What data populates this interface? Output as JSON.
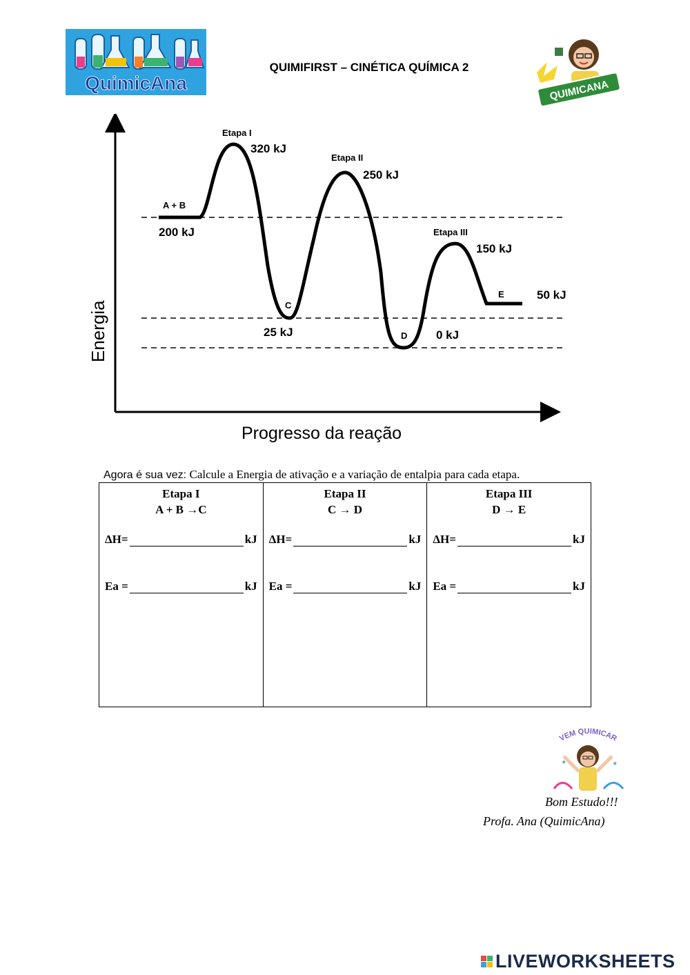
{
  "header": {
    "logo_left_text": "QuimicAna",
    "title": "QUIMIFIRST – CINÉTICA QUÍMICA 2",
    "logo_right_text": "QUIMICANA"
  },
  "diagram": {
    "y_axis_label": "Energia",
    "x_axis_label": "Progresso da reação",
    "points": {
      "ab": {
        "name": "A + B",
        "energy": "200 kJ"
      },
      "step1": {
        "name": "Etapa I",
        "energy": "320 kJ"
      },
      "c": {
        "name": "C",
        "energy": "25 kJ"
      },
      "step2": {
        "name": "Etapa II",
        "energy": "250 kJ"
      },
      "d": {
        "name": "D",
        "energy": "0 kJ"
      },
      "step3": {
        "name": "Etapa III",
        "energy": "150 kJ"
      },
      "e": {
        "name": "E",
        "energy": "50 kJ"
      }
    }
  },
  "instructions": {
    "lead": "Agora é sua vez: ",
    "text": "Calcule a Energia de ativação e a variação de entalpia para cada etapa."
  },
  "table": {
    "columns": [
      {
        "title": "Etapa I",
        "reaction": "A + B →C",
        "dh_label": "ΔH=",
        "ea_label": "Ea =",
        "unit": "kJ"
      },
      {
        "title": "Etapa II",
        "reaction": "C → D",
        "dh_label": "ΔH=",
        "ea_label": "Ea =",
        "unit": "kJ"
      },
      {
        "title": "Etapa III",
        "reaction": "D → E",
        "dh_label": "ΔH=",
        "ea_label": "Ea =",
        "unit": "kJ"
      }
    ]
  },
  "sticker_text": "VEM QUIMICAR",
  "signature": {
    "line1": "Bom Estudo!!!",
    "line2": "Profa. Ana (QuimicAna)"
  },
  "footer": {
    "brand": "LIVEWORKSHEETS"
  },
  "colors": {
    "logo_blue": "#2ea3e0",
    "sticker_green": "#2e8b3a",
    "brand_navy": "#1a2a4a"
  }
}
